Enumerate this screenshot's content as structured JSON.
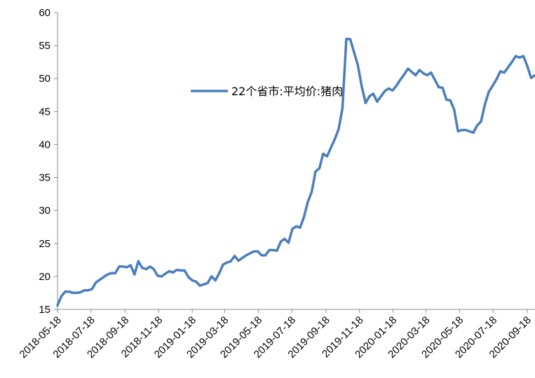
{
  "chart_data": {
    "type": "line",
    "title": "",
    "xlabel": "",
    "ylabel": "",
    "ylim": [
      15,
      60
    ],
    "yticks": [
      15,
      20,
      25,
      30,
      35,
      40,
      45,
      50,
      55,
      60
    ],
    "xlim": [
      "2018-05-18",
      "2020-10-02"
    ],
    "xticks": [
      "2018-05-18",
      "2018-07-18",
      "2018-09-18",
      "2018-11-18",
      "2019-01-18",
      "2019-03-18",
      "2019-05-18",
      "2019-07-18",
      "2019-09-18",
      "2019-11-18",
      "2020-01-18",
      "2020-03-18",
      "2020-05-18",
      "2020-07-18",
      "2020-09-18"
    ],
    "grid": false,
    "legend_position": "top-center",
    "series": [
      {
        "name": "22个省市:平均价:猪肉",
        "color": "#4a7ebb",
        "points": [
          [
            "2018-05-18",
            15.6
          ],
          [
            "2018-05-25",
            17.0
          ],
          [
            "2018-06-01",
            17.7
          ],
          [
            "2018-06-08",
            17.7
          ],
          [
            "2018-06-15",
            17.5
          ],
          [
            "2018-06-22",
            17.5
          ],
          [
            "2018-06-29",
            17.6
          ],
          [
            "2018-07-06",
            17.9
          ],
          [
            "2018-07-13",
            17.9
          ],
          [
            "2018-07-20",
            18.1
          ],
          [
            "2018-07-27",
            19.1
          ],
          [
            "2018-08-03",
            19.5
          ],
          [
            "2018-08-10",
            19.9
          ],
          [
            "2018-08-17",
            20.3
          ],
          [
            "2018-08-24",
            20.5
          ],
          [
            "2018-08-31",
            20.5
          ],
          [
            "2018-09-07",
            21.5
          ],
          [
            "2018-09-14",
            21.5
          ],
          [
            "2018-09-21",
            21.4
          ],
          [
            "2018-09-28",
            21.7
          ],
          [
            "2018-10-05",
            20.3
          ],
          [
            "2018-10-12",
            22.3
          ],
          [
            "2018-10-19",
            21.3
          ],
          [
            "2018-10-26",
            21.1
          ],
          [
            "2018-11-02",
            21.5
          ],
          [
            "2018-11-09",
            21.1
          ],
          [
            "2018-11-16",
            20.1
          ],
          [
            "2018-11-23",
            20.0
          ],
          [
            "2018-11-30",
            20.4
          ],
          [
            "2018-12-07",
            20.8
          ],
          [
            "2018-12-14",
            20.6
          ],
          [
            "2018-12-21",
            21.0
          ],
          [
            "2018-12-28",
            20.9
          ],
          [
            "2019-01-04",
            20.9
          ],
          [
            "2019-01-11",
            19.9
          ],
          [
            "2019-01-18",
            19.4
          ],
          [
            "2019-01-25",
            19.2
          ],
          [
            "2019-02-01",
            18.6
          ],
          [
            "2019-02-08",
            18.8
          ],
          [
            "2019-02-15",
            19.0
          ],
          [
            "2019-02-22",
            20.0
          ],
          [
            "2019-03-01",
            19.4
          ],
          [
            "2019-03-08",
            20.5
          ],
          [
            "2019-03-15",
            21.8
          ],
          [
            "2019-03-22",
            22.1
          ],
          [
            "2019-03-29",
            22.3
          ],
          [
            "2019-04-05",
            23.1
          ],
          [
            "2019-04-12",
            22.4
          ],
          [
            "2019-04-19",
            22.8
          ],
          [
            "2019-04-26",
            23.2
          ],
          [
            "2019-05-03",
            23.5
          ],
          [
            "2019-05-10",
            23.8
          ],
          [
            "2019-05-17",
            23.8
          ],
          [
            "2019-05-24",
            23.2
          ],
          [
            "2019-05-31",
            23.2
          ],
          [
            "2019-06-07",
            24.0
          ],
          [
            "2019-06-14",
            24.0
          ],
          [
            "2019-06-21",
            23.9
          ],
          [
            "2019-06-28",
            25.3
          ],
          [
            "2019-07-05",
            25.7
          ],
          [
            "2019-07-12",
            25.1
          ],
          [
            "2019-07-19",
            27.2
          ],
          [
            "2019-07-26",
            27.6
          ],
          [
            "2019-08-02",
            27.4
          ],
          [
            "2019-08-09",
            29.0
          ],
          [
            "2019-08-16",
            31.3
          ],
          [
            "2019-08-23",
            32.8
          ],
          [
            "2019-08-30",
            35.9
          ],
          [
            "2019-09-06",
            36.4
          ],
          [
            "2019-09-13",
            38.6
          ],
          [
            "2019-09-20",
            38.2
          ],
          [
            "2019-09-27",
            39.5
          ],
          [
            "2019-10-04",
            40.8
          ],
          [
            "2019-10-11",
            42.3
          ],
          [
            "2019-10-18",
            45.5
          ],
          [
            "2019-10-25",
            56.0
          ],
          [
            "2019-11-01",
            56.0
          ],
          [
            "2019-11-08",
            54.0
          ],
          [
            "2019-11-15",
            52.0
          ],
          [
            "2019-11-22",
            48.8
          ],
          [
            "2019-11-29",
            46.3
          ],
          [
            "2019-12-06",
            47.3
          ],
          [
            "2019-12-13",
            47.7
          ],
          [
            "2019-12-20",
            46.5
          ],
          [
            "2019-12-27",
            47.3
          ],
          [
            "2020-01-03",
            48.1
          ],
          [
            "2020-01-10",
            48.5
          ],
          [
            "2020-01-17",
            48.2
          ],
          [
            "2020-01-24",
            48.9
          ],
          [
            "2020-01-31",
            49.8
          ],
          [
            "2020-02-07",
            50.6
          ],
          [
            "2020-02-14",
            51.5
          ],
          [
            "2020-02-21",
            51.0
          ],
          [
            "2020-02-28",
            50.5
          ],
          [
            "2020-03-06",
            51.3
          ],
          [
            "2020-03-13",
            50.8
          ],
          [
            "2020-03-20",
            50.5
          ],
          [
            "2020-03-27",
            50.9
          ],
          [
            "2020-04-03",
            49.8
          ],
          [
            "2020-04-10",
            48.7
          ],
          [
            "2020-04-17",
            48.6
          ],
          [
            "2020-04-24",
            46.8
          ],
          [
            "2020-05-01",
            46.7
          ],
          [
            "2020-05-08",
            45.3
          ],
          [
            "2020-05-15",
            42.0
          ],
          [
            "2020-05-22",
            42.2
          ],
          [
            "2020-05-29",
            42.2
          ],
          [
            "2020-06-05",
            42.0
          ],
          [
            "2020-06-12",
            41.8
          ],
          [
            "2020-06-19",
            42.9
          ],
          [
            "2020-06-26",
            43.5
          ],
          [
            "2020-07-03",
            46.1
          ],
          [
            "2020-07-10",
            48.0
          ],
          [
            "2020-07-17",
            48.9
          ],
          [
            "2020-07-24",
            49.9
          ],
          [
            "2020-07-31",
            51.1
          ],
          [
            "2020-08-07",
            50.9
          ],
          [
            "2020-08-14",
            51.7
          ],
          [
            "2020-08-21",
            52.5
          ],
          [
            "2020-08-28",
            53.4
          ],
          [
            "2020-09-04",
            53.2
          ],
          [
            "2020-09-11",
            53.4
          ],
          [
            "2020-09-18",
            51.9
          ],
          [
            "2020-09-25",
            50.1
          ],
          [
            "2020-10-02",
            50.5
          ]
        ]
      }
    ]
  }
}
